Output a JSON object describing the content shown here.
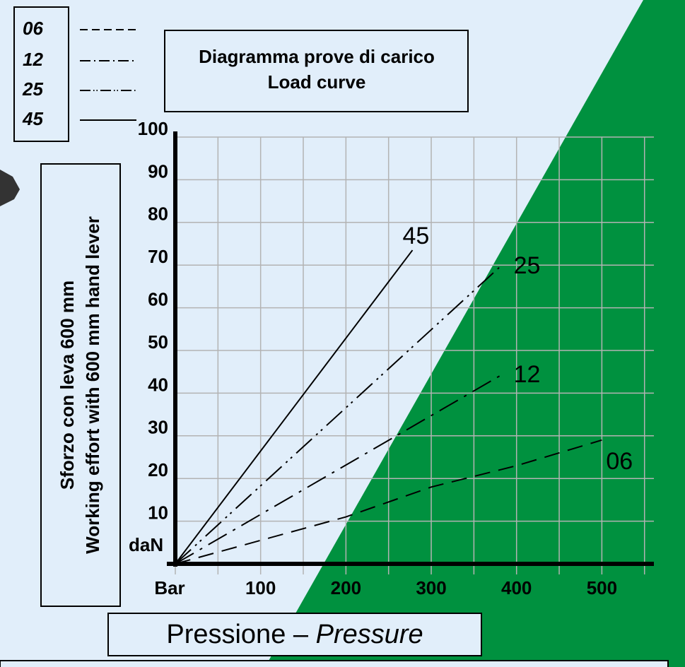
{
  "chart_data": {
    "type": "line",
    "title": "Diagramma prove di carico",
    "subtitle": "Load curve",
    "ylabel": [
      "Sforzo con leva 600 mm",
      "Working effort with 600 mm hand lever"
    ],
    "yunit": "daN",
    "xlabel": [
      "Pressione",
      "–",
      "Pressure"
    ],
    "xlim": [
      0,
      561
    ],
    "ylim": [
      0,
      100
    ],
    "xticks": [
      {
        "value": 0,
        "label": "Bar"
      },
      100,
      200,
      300,
      400,
      500
    ],
    "xminor_ticks": [
      50,
      150,
      250,
      350,
      450,
      550
    ],
    "yticks": [
      10,
      20,
      30,
      40,
      50,
      60,
      70,
      80,
      90,
      100
    ],
    "grid": true,
    "series": [
      {
        "name": "06",
        "color": "#000000",
        "dash": "dashed",
        "x": [
          0,
          200,
          300,
          400,
          500
        ],
        "values": [
          0,
          11,
          18,
          23,
          29
        ]
      },
      {
        "name": "12",
        "color": "#000000",
        "dash": "dash-dot",
        "x": [
          0,
          380
        ],
        "values": [
          0,
          44
        ]
      },
      {
        "name": "25",
        "color": "#000000",
        "dash": "dash-dot-dot",
        "x": [
          0,
          380
        ],
        "values": [
          0,
          69.5
        ]
      },
      {
        "name": "45",
        "color": "#000000",
        "dash": "solid",
        "x": [
          0,
          278
        ],
        "values": [
          0,
          73.5
        ]
      }
    ]
  }
}
